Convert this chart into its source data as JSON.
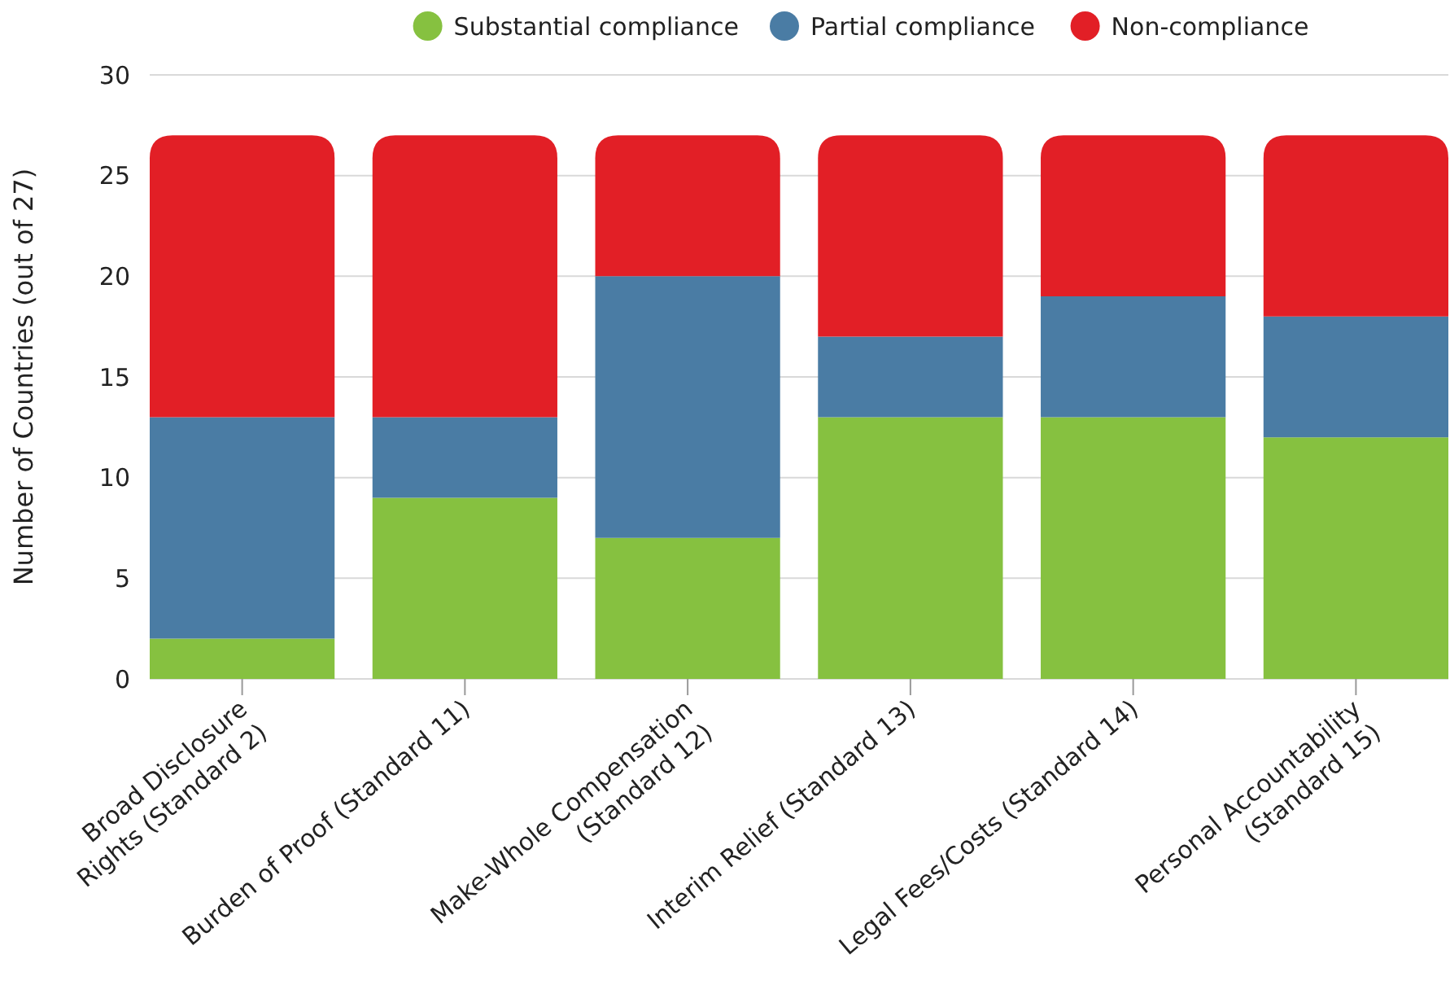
{
  "chart_data": {
    "type": "bar",
    "stacked": true,
    "ylabel": "Number of Countries (out of 27)",
    "categories": [
      "Broad Disclosure\nRights (Standard 2)",
      "Burden of Proof (Standard 11)",
      "Make-Whole Compensation\n(Standard 12)",
      "Interim Relief (Standard 13)",
      "Legal Fees/Costs (Standard 14)",
      "Personal Accountability\n(Standard 15)"
    ],
    "series": [
      {
        "name": "Substantial compliance",
        "color": "#86c140",
        "values": [
          2,
          9,
          7,
          13,
          13,
          12
        ]
      },
      {
        "name": "Partial compliance",
        "color": "#4a7ca4",
        "values": [
          11,
          4,
          13,
          4,
          6,
          6
        ]
      },
      {
        "name": "Non-compliance",
        "color": "#e21f26",
        "values": [
          14,
          14,
          7,
          10,
          8,
          9
        ]
      }
    ],
    "ylim": [
      0,
      30
    ],
    "yticks": [
      0,
      5,
      10,
      15,
      20,
      25,
      30
    ],
    "grid": "y",
    "legend": "top"
  }
}
